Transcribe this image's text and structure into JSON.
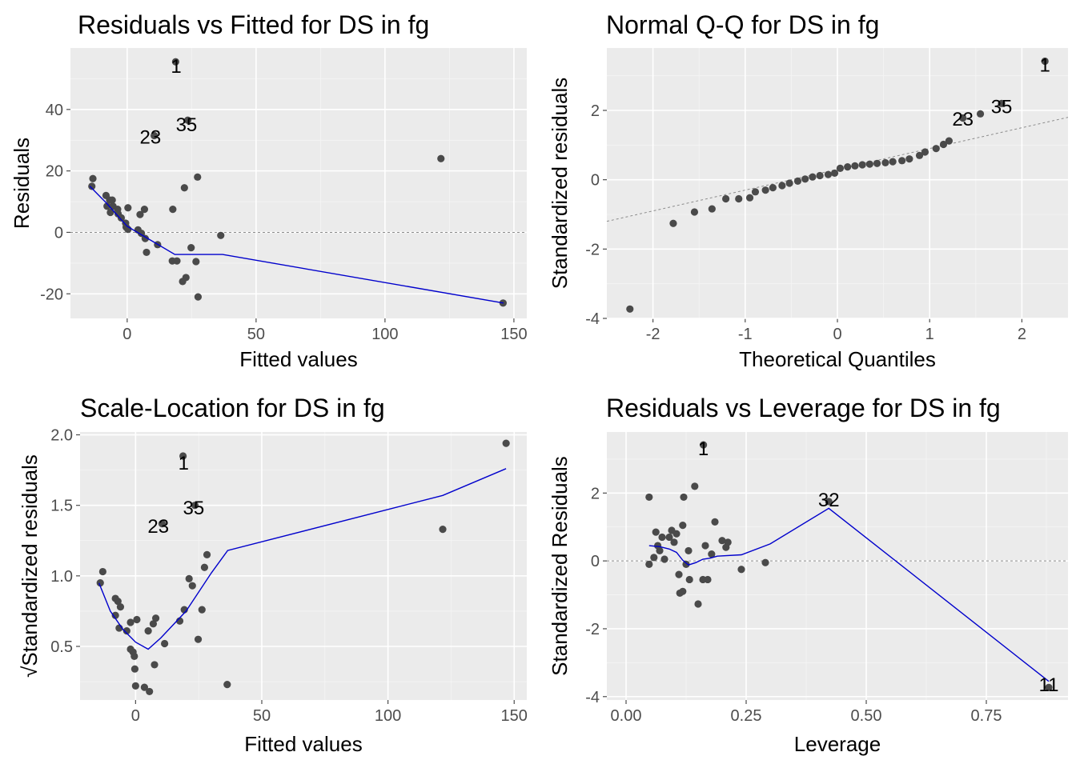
{
  "colors": {
    "panel_bg": "#ebebeb",
    "grid_major": "#ffffff",
    "grid_minor": "#f5f5f5",
    "point": "#4a4a4a",
    "smooth": "#0000cc",
    "reference": "#8c8c8c",
    "tick": "#4d4d4d"
  },
  "chart_data": [
    {
      "type": "scatter",
      "title": "Residuals vs Fitted for DS in fg",
      "xlabel": "Fitted values",
      "ylabel": "Residuals",
      "xlim": [
        -22,
        155
      ],
      "ylim": [
        -28,
        60
      ],
      "xticks": [
        0,
        50,
        100,
        150
      ],
      "xtick_labels": [
        "0",
        "50",
        "100",
        "150"
      ],
      "yticks": [
        -20,
        0,
        20,
        40
      ],
      "ytick_labels": [
        "-20",
        "0",
        "20",
        "40"
      ],
      "hline": 0,
      "points": [
        {
          "x": 18.8,
          "y": 55.5
        },
        {
          "x": 10.5,
          "y": 31.5
        },
        {
          "x": 23.5,
          "y": 36.5
        },
        {
          "x": 121.7,
          "y": 24
        },
        {
          "x": 145.8,
          "y": -23
        },
        {
          "x": -13.3,
          "y": 17.5
        },
        {
          "x": -13.7,
          "y": 15
        },
        {
          "x": -8.2,
          "y": 12
        },
        {
          "x": -6.8,
          "y": 10.5
        },
        {
          "x": -5.8,
          "y": 10.5
        },
        {
          "x": -7.8,
          "y": 8.5
        },
        {
          "x": -5.5,
          "y": 8.5
        },
        {
          "x": -3.7,
          "y": 7.5
        },
        {
          "x": 0.3,
          "y": 8
        },
        {
          "x": -6.5,
          "y": 6.5
        },
        {
          "x": -3.5,
          "y": 6
        },
        {
          "x": -2.3,
          "y": 4.7
        },
        {
          "x": -0.6,
          "y": 3
        },
        {
          "x": -0.4,
          "y": 1.7
        },
        {
          "x": 0.3,
          "y": 1
        },
        {
          "x": 4.2,
          "y": 0.8
        },
        {
          "x": 5.5,
          "y": -0.3
        },
        {
          "x": 5.0,
          "y": 5.8
        },
        {
          "x": 6.7,
          "y": 7.5
        },
        {
          "x": 7.0,
          "y": -2
        },
        {
          "x": 7.5,
          "y": -6.5
        },
        {
          "x": 11.8,
          "y": -4
        },
        {
          "x": 17.5,
          "y": -9.3
        },
        {
          "x": 19.3,
          "y": -9.3
        },
        {
          "x": 17.7,
          "y": 7.5
        },
        {
          "x": 21.5,
          "y": -16
        },
        {
          "x": 22.8,
          "y": -14.7
        },
        {
          "x": 22.2,
          "y": 14.5
        },
        {
          "x": 24.8,
          "y": -5
        },
        {
          "x": 26.7,
          "y": -9.5
        },
        {
          "x": 27.3,
          "y": 18
        },
        {
          "x": 27.5,
          "y": -21
        },
        {
          "x": 36.3,
          "y": -1
        }
      ],
      "smooth": [
        {
          "x": -14.5,
          "y": 15
        },
        {
          "x": -8,
          "y": 9.5
        },
        {
          "x": 0,
          "y": 2
        },
        {
          "x": 8,
          "y": -2
        },
        {
          "x": 18.5,
          "y": -7.2
        },
        {
          "x": 37,
          "y": -7.2
        },
        {
          "x": 146,
          "y": -23
        }
      ],
      "labels": [
        {
          "text": "1",
          "x": 19,
          "y": 54
        },
        {
          "text": "23",
          "x": 9,
          "y": 31
        },
        {
          "text": "35",
          "x": 23,
          "y": 35
        }
      ]
    },
    {
      "type": "scatter",
      "title": "Normal Q-Q for DS in fg",
      "xlabel": "Theoretical Quantiles",
      "ylabel": "Standardized residuals",
      "xlim": [
        -2.5,
        2.5
      ],
      "ylim": [
        -4.0,
        3.8
      ],
      "xticks": [
        -2,
        -1,
        0,
        1,
        2
      ],
      "xtick_labels": [
        "-2",
        "-1",
        "0",
        "1",
        "2"
      ],
      "yticks": [
        -4,
        -2,
        0,
        2
      ],
      "ytick_labels": [
        "-4",
        "-2",
        "0",
        "2"
      ],
      "refline": {
        "intercept": 0.3,
        "slope": 0.6
      },
      "points": [
        {
          "x": -2.25,
          "y": -3.73
        },
        {
          "x": -1.78,
          "y": -1.26
        },
        {
          "x": -1.55,
          "y": -0.93
        },
        {
          "x": -1.36,
          "y": -0.84
        },
        {
          "x": -1.21,
          "y": -0.55
        },
        {
          "x": -1.07,
          "y": -0.55
        },
        {
          "x": -0.95,
          "y": -0.52
        },
        {
          "x": -0.89,
          "y": -0.35
        },
        {
          "x": -0.78,
          "y": -0.3
        },
        {
          "x": -0.7,
          "y": -0.23
        },
        {
          "x": -0.6,
          "y": -0.17
        },
        {
          "x": -0.52,
          "y": -0.1
        },
        {
          "x": -0.43,
          "y": -0.04
        },
        {
          "x": -0.35,
          "y": 0.02
        },
        {
          "x": -0.27,
          "y": 0.08
        },
        {
          "x": -0.19,
          "y": 0.12
        },
        {
          "x": -0.1,
          "y": 0.15
        },
        {
          "x": -0.03,
          "y": 0.19
        },
        {
          "x": 0.03,
          "y": 0.33
        },
        {
          "x": 0.11,
          "y": 0.37
        },
        {
          "x": 0.19,
          "y": 0.4
        },
        {
          "x": 0.27,
          "y": 0.43
        },
        {
          "x": 0.35,
          "y": 0.45
        },
        {
          "x": 0.43,
          "y": 0.47
        },
        {
          "x": 0.52,
          "y": 0.49
        },
        {
          "x": 0.6,
          "y": 0.52
        },
        {
          "x": 0.7,
          "y": 0.55
        },
        {
          "x": 0.78,
          "y": 0.6
        },
        {
          "x": 0.89,
          "y": 0.7
        },
        {
          "x": 0.95,
          "y": 0.8
        },
        {
          "x": 1.07,
          "y": 0.9
        },
        {
          "x": 1.15,
          "y": 1.02
        },
        {
          "x": 1.21,
          "y": 1.12
        },
        {
          "x": 1.36,
          "y": 1.78
        },
        {
          "x": 1.55,
          "y": 1.9
        },
        {
          "x": 1.78,
          "y": 2.2
        },
        {
          "x": 2.25,
          "y": 3.42
        }
      ],
      "labels": [
        {
          "text": "1",
          "x": 2.25,
          "y": 3.3
        },
        {
          "text": "23",
          "x": 1.36,
          "y": 1.75
        },
        {
          "text": "35",
          "x": 1.78,
          "y": 2.1
        }
      ]
    },
    {
      "type": "scatter",
      "title": "Scale-Location for DS in fg",
      "xlabel": "Fitted values",
      "ylabel": "Standardized residuals",
      "ylabel_prefix": "√",
      "xlim": [
        -22,
        155
      ],
      "ylim": [
        0.12,
        2.02
      ],
      "xticks": [
        0,
        50,
        100,
        150
      ],
      "xtick_labels": [
        "0",
        "50",
        "100",
        "150"
      ],
      "yticks": [
        0.5,
        1.0,
        1.5,
        2.0
      ],
      "ytick_labels": [
        "0.5",
        "1.0",
        "1.5",
        "2.0"
      ],
      "points": [
        {
          "x": 18.8,
          "y": 1.85
        },
        {
          "x": 10.5,
          "y": 1.37
        },
        {
          "x": 23.5,
          "y": 1.5
        },
        {
          "x": 121.7,
          "y": 1.33
        },
        {
          "x": 146.8,
          "y": 1.94
        },
        {
          "x": -13,
          "y": 1.03
        },
        {
          "x": -14,
          "y": 0.95
        },
        {
          "x": -8,
          "y": 0.84
        },
        {
          "x": -7,
          "y": 0.82
        },
        {
          "x": -6,
          "y": 0.78
        },
        {
          "x": -8,
          "y": 0.72
        },
        {
          "x": -6.5,
          "y": 0.63
        },
        {
          "x": -3.5,
          "y": 0.61
        },
        {
          "x": -2,
          "y": 0.67
        },
        {
          "x": 0.5,
          "y": 0.69
        },
        {
          "x": -2,
          "y": 0.48
        },
        {
          "x": -1,
          "y": 0.46
        },
        {
          "x": -0.5,
          "y": 0.43
        },
        {
          "x": -0.3,
          "y": 0.34
        },
        {
          "x": 0,
          "y": 0.22
        },
        {
          "x": 3.5,
          "y": 0.21
        },
        {
          "x": 5.5,
          "y": 0.18
        },
        {
          "x": 5,
          "y": 0.61
        },
        {
          "x": 7,
          "y": 0.66
        },
        {
          "x": 7.5,
          "y": 0.37
        },
        {
          "x": 8,
          "y": 0.7
        },
        {
          "x": 11.5,
          "y": 0.52
        },
        {
          "x": 17.5,
          "y": 0.68
        },
        {
          "x": 19.3,
          "y": 0.76
        },
        {
          "x": 21.2,
          "y": 0.98
        },
        {
          "x": 22.5,
          "y": 0.93
        },
        {
          "x": 24.8,
          "y": 0.55
        },
        {
          "x": 26.3,
          "y": 0.76
        },
        {
          "x": 27.3,
          "y": 1.06
        },
        {
          "x": 28.3,
          "y": 1.15
        },
        {
          "x": 36.3,
          "y": 0.23
        }
      ],
      "smooth": [
        {
          "x": -14.5,
          "y": 0.95
        },
        {
          "x": -10,
          "y": 0.75
        },
        {
          "x": -5,
          "y": 0.62
        },
        {
          "x": 0,
          "y": 0.53
        },
        {
          "x": 5,
          "y": 0.48
        },
        {
          "x": 10,
          "y": 0.56
        },
        {
          "x": 20,
          "y": 0.75
        },
        {
          "x": 30,
          "y": 1.02
        },
        {
          "x": 36.5,
          "y": 1.18
        },
        {
          "x": 121.7,
          "y": 1.57
        },
        {
          "x": 146.8,
          "y": 1.76
        }
      ],
      "labels": [
        {
          "text": "1",
          "x": 19,
          "y": 1.8
        },
        {
          "text": "23",
          "x": 9,
          "y": 1.35
        },
        {
          "text": "35",
          "x": 23,
          "y": 1.48
        }
      ]
    },
    {
      "type": "scatter",
      "title": "Residuals vs Leverage for DS in fg",
      "xlabel": "Leverage",
      "ylabel": "Standardized Residuals",
      "xlim": [
        -0.04,
        0.92
      ],
      "ylim": [
        -4.1,
        3.8
      ],
      "xticks": [
        0.0,
        0.25,
        0.5,
        0.75
      ],
      "xtick_labels": [
        "0.00",
        "0.25",
        "0.50",
        "0.75"
      ],
      "yticks": [
        -4,
        -2,
        0,
        2
      ],
      "ytick_labels": [
        "-4",
        "-2",
        "0",
        "2"
      ],
      "hline": 0,
      "points": [
        {
          "x": 0.161,
          "y": 3.42
        },
        {
          "x": 0.422,
          "y": 1.75
        },
        {
          "x": 0.88,
          "y": -3.73
        },
        {
          "x": 0.048,
          "y": 1.88
        },
        {
          "x": 0.048,
          "y": -0.1
        },
        {
          "x": 0.058,
          "y": 0.1
        },
        {
          "x": 0.062,
          "y": 0.85
        },
        {
          "x": 0.066,
          "y": 0.45
        },
        {
          "x": 0.07,
          "y": 0.3
        },
        {
          "x": 0.075,
          "y": 0.7
        },
        {
          "x": 0.08,
          "y": 0.05
        },
        {
          "x": 0.09,
          "y": 0.7
        },
        {
          "x": 0.095,
          "y": 0.9
        },
        {
          "x": 0.1,
          "y": 0.55
        },
        {
          "x": 0.105,
          "y": 0.8
        },
        {
          "x": 0.11,
          "y": -0.4
        },
        {
          "x": 0.112,
          "y": -0.95
        },
        {
          "x": 0.118,
          "y": -0.9
        },
        {
          "x": 0.118,
          "y": 1.05
        },
        {
          "x": 0.12,
          "y": 1.88
        },
        {
          "x": 0.125,
          "y": -0.1
        },
        {
          "x": 0.13,
          "y": 0.3
        },
        {
          "x": 0.132,
          "y": -0.55
        },
        {
          "x": 0.143,
          "y": 2.2
        },
        {
          "x": 0.15,
          "y": -1.27
        },
        {
          "x": 0.16,
          "y": -0.55
        },
        {
          "x": 0.165,
          "y": 0.45
        },
        {
          "x": 0.17,
          "y": -0.55
        },
        {
          "x": 0.178,
          "y": 0.2
        },
        {
          "x": 0.185,
          "y": 1.15
        },
        {
          "x": 0.2,
          "y": 0.6
        },
        {
          "x": 0.208,
          "y": 0.4
        },
        {
          "x": 0.212,
          "y": 0.55
        },
        {
          "x": 0.24,
          "y": -0.25
        },
        {
          "x": 0.29,
          "y": -0.05
        }
      ],
      "smooth": [
        {
          "x": 0.048,
          "y": 0.45
        },
        {
          "x": 0.07,
          "y": 0.42
        },
        {
          "x": 0.09,
          "y": 0.35
        },
        {
          "x": 0.105,
          "y": 0.25
        },
        {
          "x": 0.118,
          "y": 0.02
        },
        {
          "x": 0.13,
          "y": -0.12
        },
        {
          "x": 0.145,
          "y": -0.05
        },
        {
          "x": 0.16,
          "y": 0.05
        },
        {
          "x": 0.175,
          "y": 0.08
        },
        {
          "x": 0.19,
          "y": 0.14
        },
        {
          "x": 0.24,
          "y": 0.18
        },
        {
          "x": 0.3,
          "y": 0.5
        },
        {
          "x": 0.422,
          "y": 1.55
        },
        {
          "x": 0.88,
          "y": -3.55
        }
      ],
      "labels": [
        {
          "text": "1",
          "x": 0.161,
          "y": 3.3
        },
        {
          "text": "32",
          "x": 0.422,
          "y": 1.8
        },
        {
          "text": "11",
          "x": 0.88,
          "y": -3.65
        }
      ]
    }
  ]
}
